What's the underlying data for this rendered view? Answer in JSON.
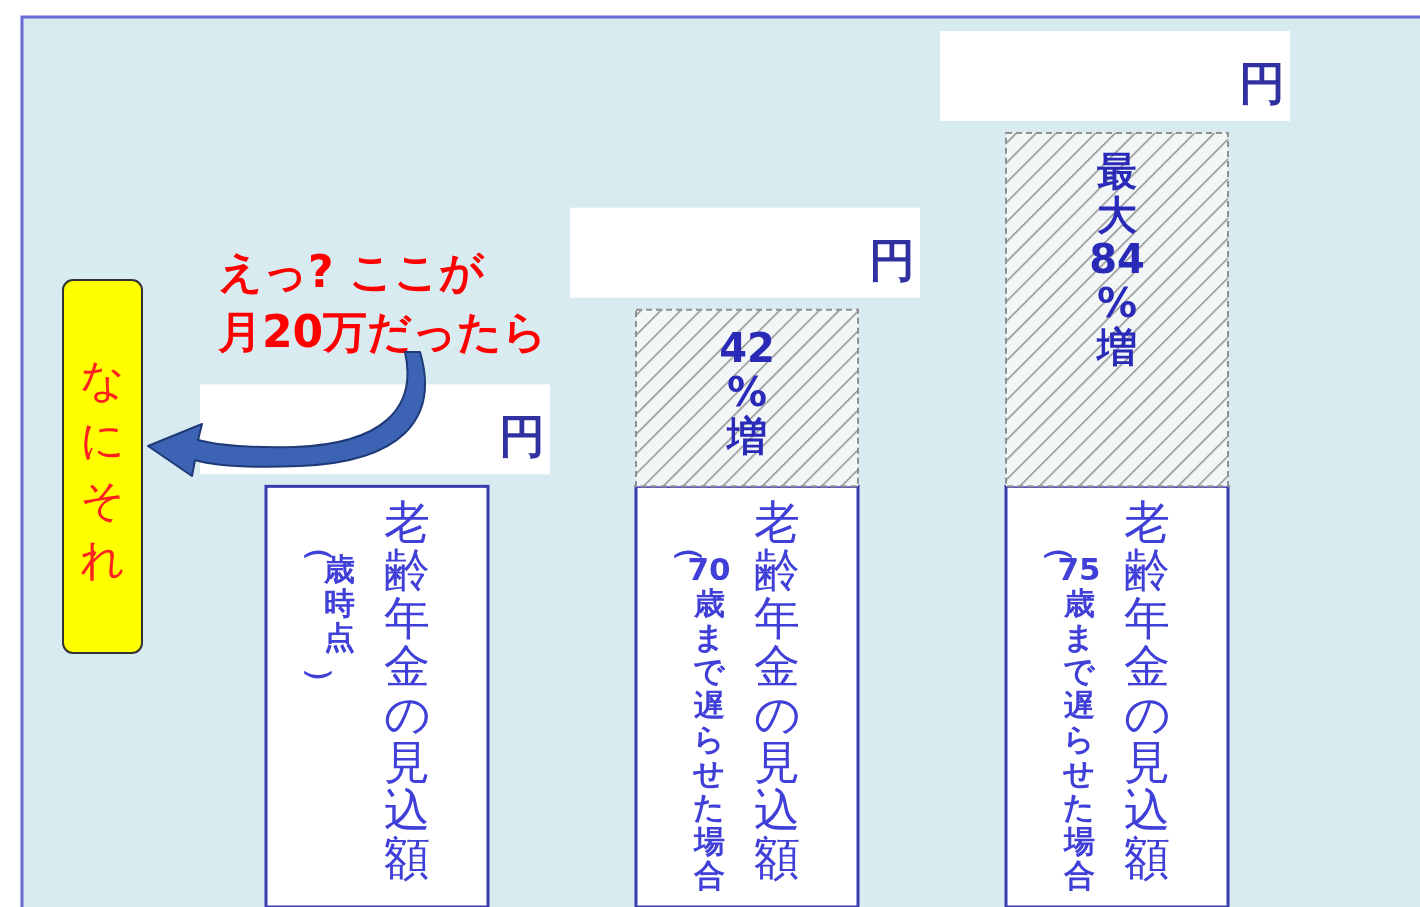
{
  "chart_data": {
    "type": "bar",
    "stacked": true,
    "categories": [
      "老齢年金の見込額",
      "老齢年金の見込額",
      "老齢年金の見込額"
    ],
    "series": [
      {
        "color": "#ffffff",
        "values": [
          100,
          100,
          100
        ]
      },
      {
        "color": "#909090",
        "values": [
          null,
          42,
          84
        ],
        "value_labels": [
          null,
          "42%増",
          "最大84%増"
        ]
      }
    ],
    "annotations": [
      "円",
      "円",
      "円",
      "（歳時点）",
      "（70歳まで遅らせた場合",
      "（75歳まで遅らせた場合",
      "えっ? ここが月20万だったら",
      "なにそれ"
    ]
  }
}
